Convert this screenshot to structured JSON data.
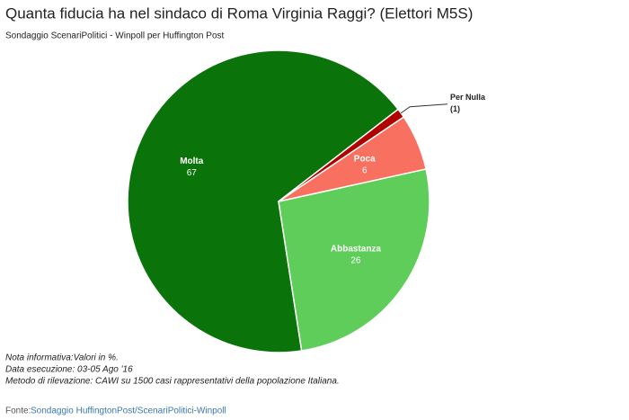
{
  "chart_data": {
    "type": "pie",
    "title": "Quanta fiducia ha nel sindaco di Roma Virginia Raggi? (Elettori M5S)",
    "subtitle": "Sondaggio ScenariPolitici - Winpoll per Huffington Post",
    "categories": [
      "Molta",
      "Abbastanza",
      "Poca",
      "Per Nulla"
    ],
    "values": [
      67,
      26,
      6,
      1
    ],
    "value_labels": [
      "67",
      "26",
      "6",
      "(1)"
    ],
    "colors": [
      "#0a730a",
      "#5fcd5a",
      "#f8705f",
      "#b00000"
    ],
    "notes": [
      "Nota informativa:Valori in %.",
      "Data esecuzione: 03-05 Ago '16",
      "Metodo di rilevazione: CAWI su 1500 casi rappresentativi della popolazione Italiana."
    ],
    "source_label": "Fonte:",
    "source": "Sondaggio HuffingtonPost/ScenariPolitici-Winpoll"
  }
}
